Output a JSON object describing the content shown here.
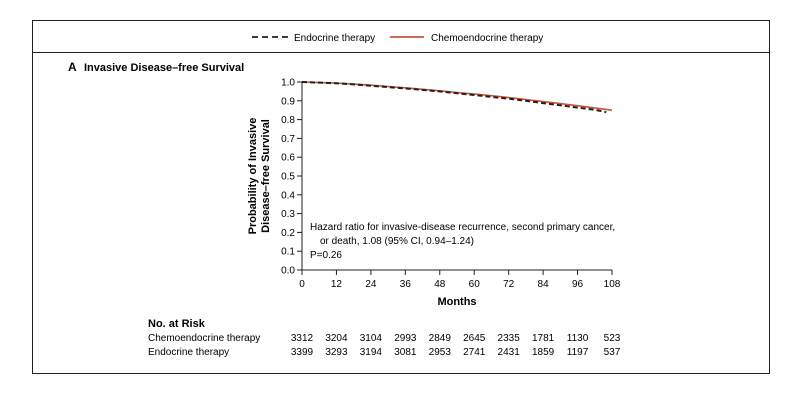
{
  "chart_data": {
    "type": "line",
    "panel_letter": "A",
    "title": "Invasive Disease–free Survival",
    "xlabel": "Months",
    "ylabel_lines": [
      "Probability of Invasive",
      "Disease–free Survival"
    ],
    "xlim": [
      0,
      108
    ],
    "ylim": [
      0.0,
      1.0
    ],
    "x_ticks": [
      0,
      12,
      24,
      36,
      48,
      60,
      72,
      84,
      96,
      108
    ],
    "y_ticks": [
      "0.0",
      "0.1",
      "0.2",
      "0.3",
      "0.4",
      "0.5",
      "0.6",
      "0.7",
      "0.8",
      "0.9",
      "1.0"
    ],
    "legend": [
      {
        "name": "Endocrine therapy",
        "style": "dashed",
        "color": "#231f20"
      },
      {
        "name": "Chemoendocrine therapy",
        "style": "solid",
        "color": "#c8553d"
      }
    ],
    "series": [
      {
        "name": "Endocrine therapy",
        "color": "#231f20",
        "style": "dashed",
        "x": [
          0,
          6,
          12,
          18,
          24,
          30,
          36,
          42,
          48,
          54,
          60,
          66,
          72,
          78,
          84,
          90,
          96,
          102,
          106
        ],
        "y": [
          1.0,
          0.997,
          0.993,
          0.987,
          0.98,
          0.973,
          0.966,
          0.958,
          0.95,
          0.94,
          0.931,
          0.921,
          0.911,
          0.9,
          0.888,
          0.876,
          0.864,
          0.852,
          0.84
        ]
      },
      {
        "name": "Chemoendocrine therapy",
        "color": "#c8553d",
        "style": "solid",
        "x": [
          0,
          6,
          12,
          18,
          24,
          30,
          36,
          42,
          48,
          54,
          60,
          66,
          72,
          78,
          84,
          90,
          96,
          102,
          108
        ],
        "y": [
          1.0,
          0.997,
          0.994,
          0.989,
          0.983,
          0.976,
          0.969,
          0.961,
          0.953,
          0.944,
          0.936,
          0.927,
          0.917,
          0.907,
          0.896,
          0.885,
          0.874,
          0.862,
          0.85
        ]
      }
    ],
    "annotation_lines": [
      "Hazard ratio for invasive-disease recurrence, second primary cancer,",
      "or death, 1.08 (95% CI, 0.94–1.24)",
      "P=0.26"
    ],
    "risk_table": {
      "header": "No. at Risk",
      "rows": [
        {
          "label": "Chemoendocrine therapy",
          "values": [
            3312,
            3204,
            3104,
            2993,
            2849,
            2645,
            2335,
            1781,
            1130,
            523
          ]
        },
        {
          "label": "Endocrine therapy",
          "values": [
            3399,
            3293,
            3194,
            3081,
            2953,
            2741,
            2431,
            1859,
            1197,
            537
          ]
        }
      ]
    }
  }
}
